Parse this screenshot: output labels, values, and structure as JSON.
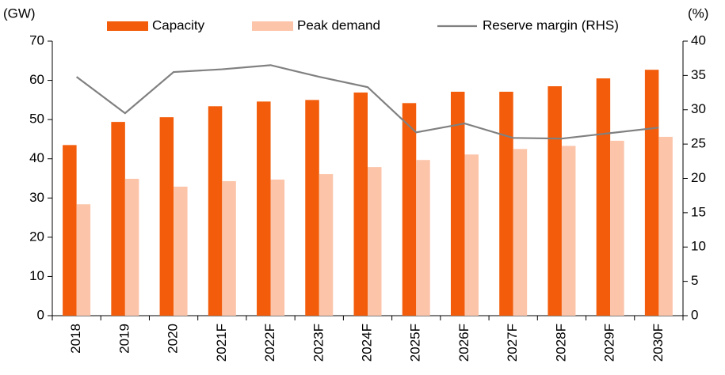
{
  "chart_data": {
    "type": "bar",
    "categories": [
      "2018",
      "2019",
      "2020",
      "2021F",
      "2022F",
      "2023F",
      "2024F",
      "2025F",
      "2026F",
      "2027F",
      "2028F",
      "2029F",
      "2030F"
    ],
    "series": [
      {
        "name": "Capacity",
        "color": "#f25c0a",
        "values": [
          43.5,
          49.4,
          50.6,
          53.4,
          54.6,
          55.0,
          56.9,
          54.2,
          57.1,
          57.1,
          58.5,
          60.5,
          62.7
        ]
      },
      {
        "name": "Peak demand",
        "color": "#fcc5aa",
        "values": [
          28.4,
          34.9,
          32.9,
          34.3,
          34.7,
          36.1,
          37.9,
          39.7,
          41.1,
          42.5,
          43.3,
          44.6,
          45.6
        ]
      },
      {
        "name": "Reserve margin (RHS)",
        "type": "line",
        "axis": "y2",
        "color": "#808080",
        "values": [
          34.8,
          29.5,
          35.5,
          35.9,
          36.5,
          34.8,
          33.3,
          26.7,
          28.0,
          25.9,
          25.8,
          26.6,
          27.4
        ]
      }
    ],
    "ylabel": "(GW)",
    "y2label": "(%)",
    "ylim": [
      0,
      70
    ],
    "yticks": [
      0,
      10,
      20,
      30,
      40,
      50,
      60,
      70
    ],
    "y2lim": [
      0,
      40
    ],
    "y2ticks": [
      0,
      5,
      10,
      15,
      20,
      25,
      30,
      35,
      40
    ],
    "grid": false,
    "legend": "top"
  }
}
